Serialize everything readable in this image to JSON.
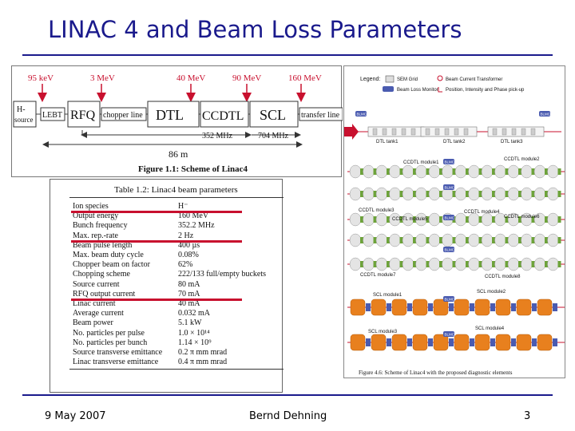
{
  "slide": {
    "title": "LINAC 4 and Beam Loss Parameters",
    "footer_date": "9 May 2007",
    "footer_author": "Bernd Dehning",
    "footer_page": "3"
  },
  "figure_layout": {
    "energies": [
      "95 keV",
      "3 MeV",
      "40 MeV",
      "90 MeV",
      "160 MeV"
    ],
    "sections": [
      "H- source",
      "LEBT",
      "RFQ",
      "chopper line",
      "DTL",
      "CCDTL",
      "SCL",
      "transfer line"
    ],
    "freq_a": "352 MHz",
    "freq_b": "704 MHz",
    "length": "86 m",
    "caption": "Figure 1.1: Scheme of Linac4",
    "colors": {
      "arrow": "#c8102e"
    }
  },
  "table": {
    "title": "Table 1.2: Linac4 beam parameters",
    "rows": [
      {
        "name": "Ion species",
        "value": "H⁻"
      },
      {
        "name": "Output energy",
        "value": "160 MeV"
      },
      {
        "name": "Bunch frequency",
        "value": "352.2 MHz"
      },
      {
        "name": "Max. rep.-rate",
        "value": "2 Hz"
      },
      {
        "name": "Beam pulse length",
        "value": "400 µs"
      },
      {
        "name": "Max. beam duty cycle",
        "value": "0.08%"
      },
      {
        "name": "Chopper beam on factor",
        "value": "62%"
      },
      {
        "name": "Chopping scheme",
        "value": "222/133 full/empty buckets"
      },
      {
        "name": "Source current",
        "value": "80 mA"
      },
      {
        "name": "RFQ output current",
        "value": "70 mA"
      },
      {
        "name": "Linac current",
        "value": "40 mA"
      },
      {
        "name": "Average current",
        "value": "0.032 mA"
      },
      {
        "name": "Beam power",
        "value": "5.1 kW"
      },
      {
        "name": "No. particles per pulse",
        "value": "1.0 × 10¹⁴"
      },
      {
        "name": "No. particles per bunch",
        "value": "1.14 × 10⁹"
      },
      {
        "name": "Source transverse emittance",
        "value": "0.2 π mm mrad"
      },
      {
        "name": "Linac transverse emittance",
        "value": "0.4 π mm mrad"
      }
    ],
    "highlighted_rows": [
      "Output energy",
      "Beam pulse length",
      "Linac current"
    ],
    "colors": {
      "highlight": "#c8102e"
    }
  },
  "diagnostics": {
    "legend_title": "Legend:",
    "legend_items": [
      "SEM Grid",
      "Beam Current Transformer",
      "Beam Loss Monitor",
      "Position, Intensity and Phase pick-up"
    ],
    "blm_label": "BLMC",
    "modules": [
      "DTL tank1",
      "DTL tank2",
      "DTL tank3",
      "CCDTL module1",
      "CCDTL module2",
      "CCDTL module3",
      "CCDTL module4",
      "CCDTL module5",
      "CCDTL module6",
      "CCDTL module7",
      "CCDTL module8",
      "SCL module1",
      "SCL module2",
      "SCL module3",
      "SCL module4"
    ],
    "caption": "Figure 4.6: Scheme of Linac4 with the proposed diagnostic elements",
    "colors": {
      "ccdtl": "#6da33a",
      "scl": "#e8801e",
      "blue": "#4a5bb0",
      "beam": "#c8102e"
    }
  }
}
